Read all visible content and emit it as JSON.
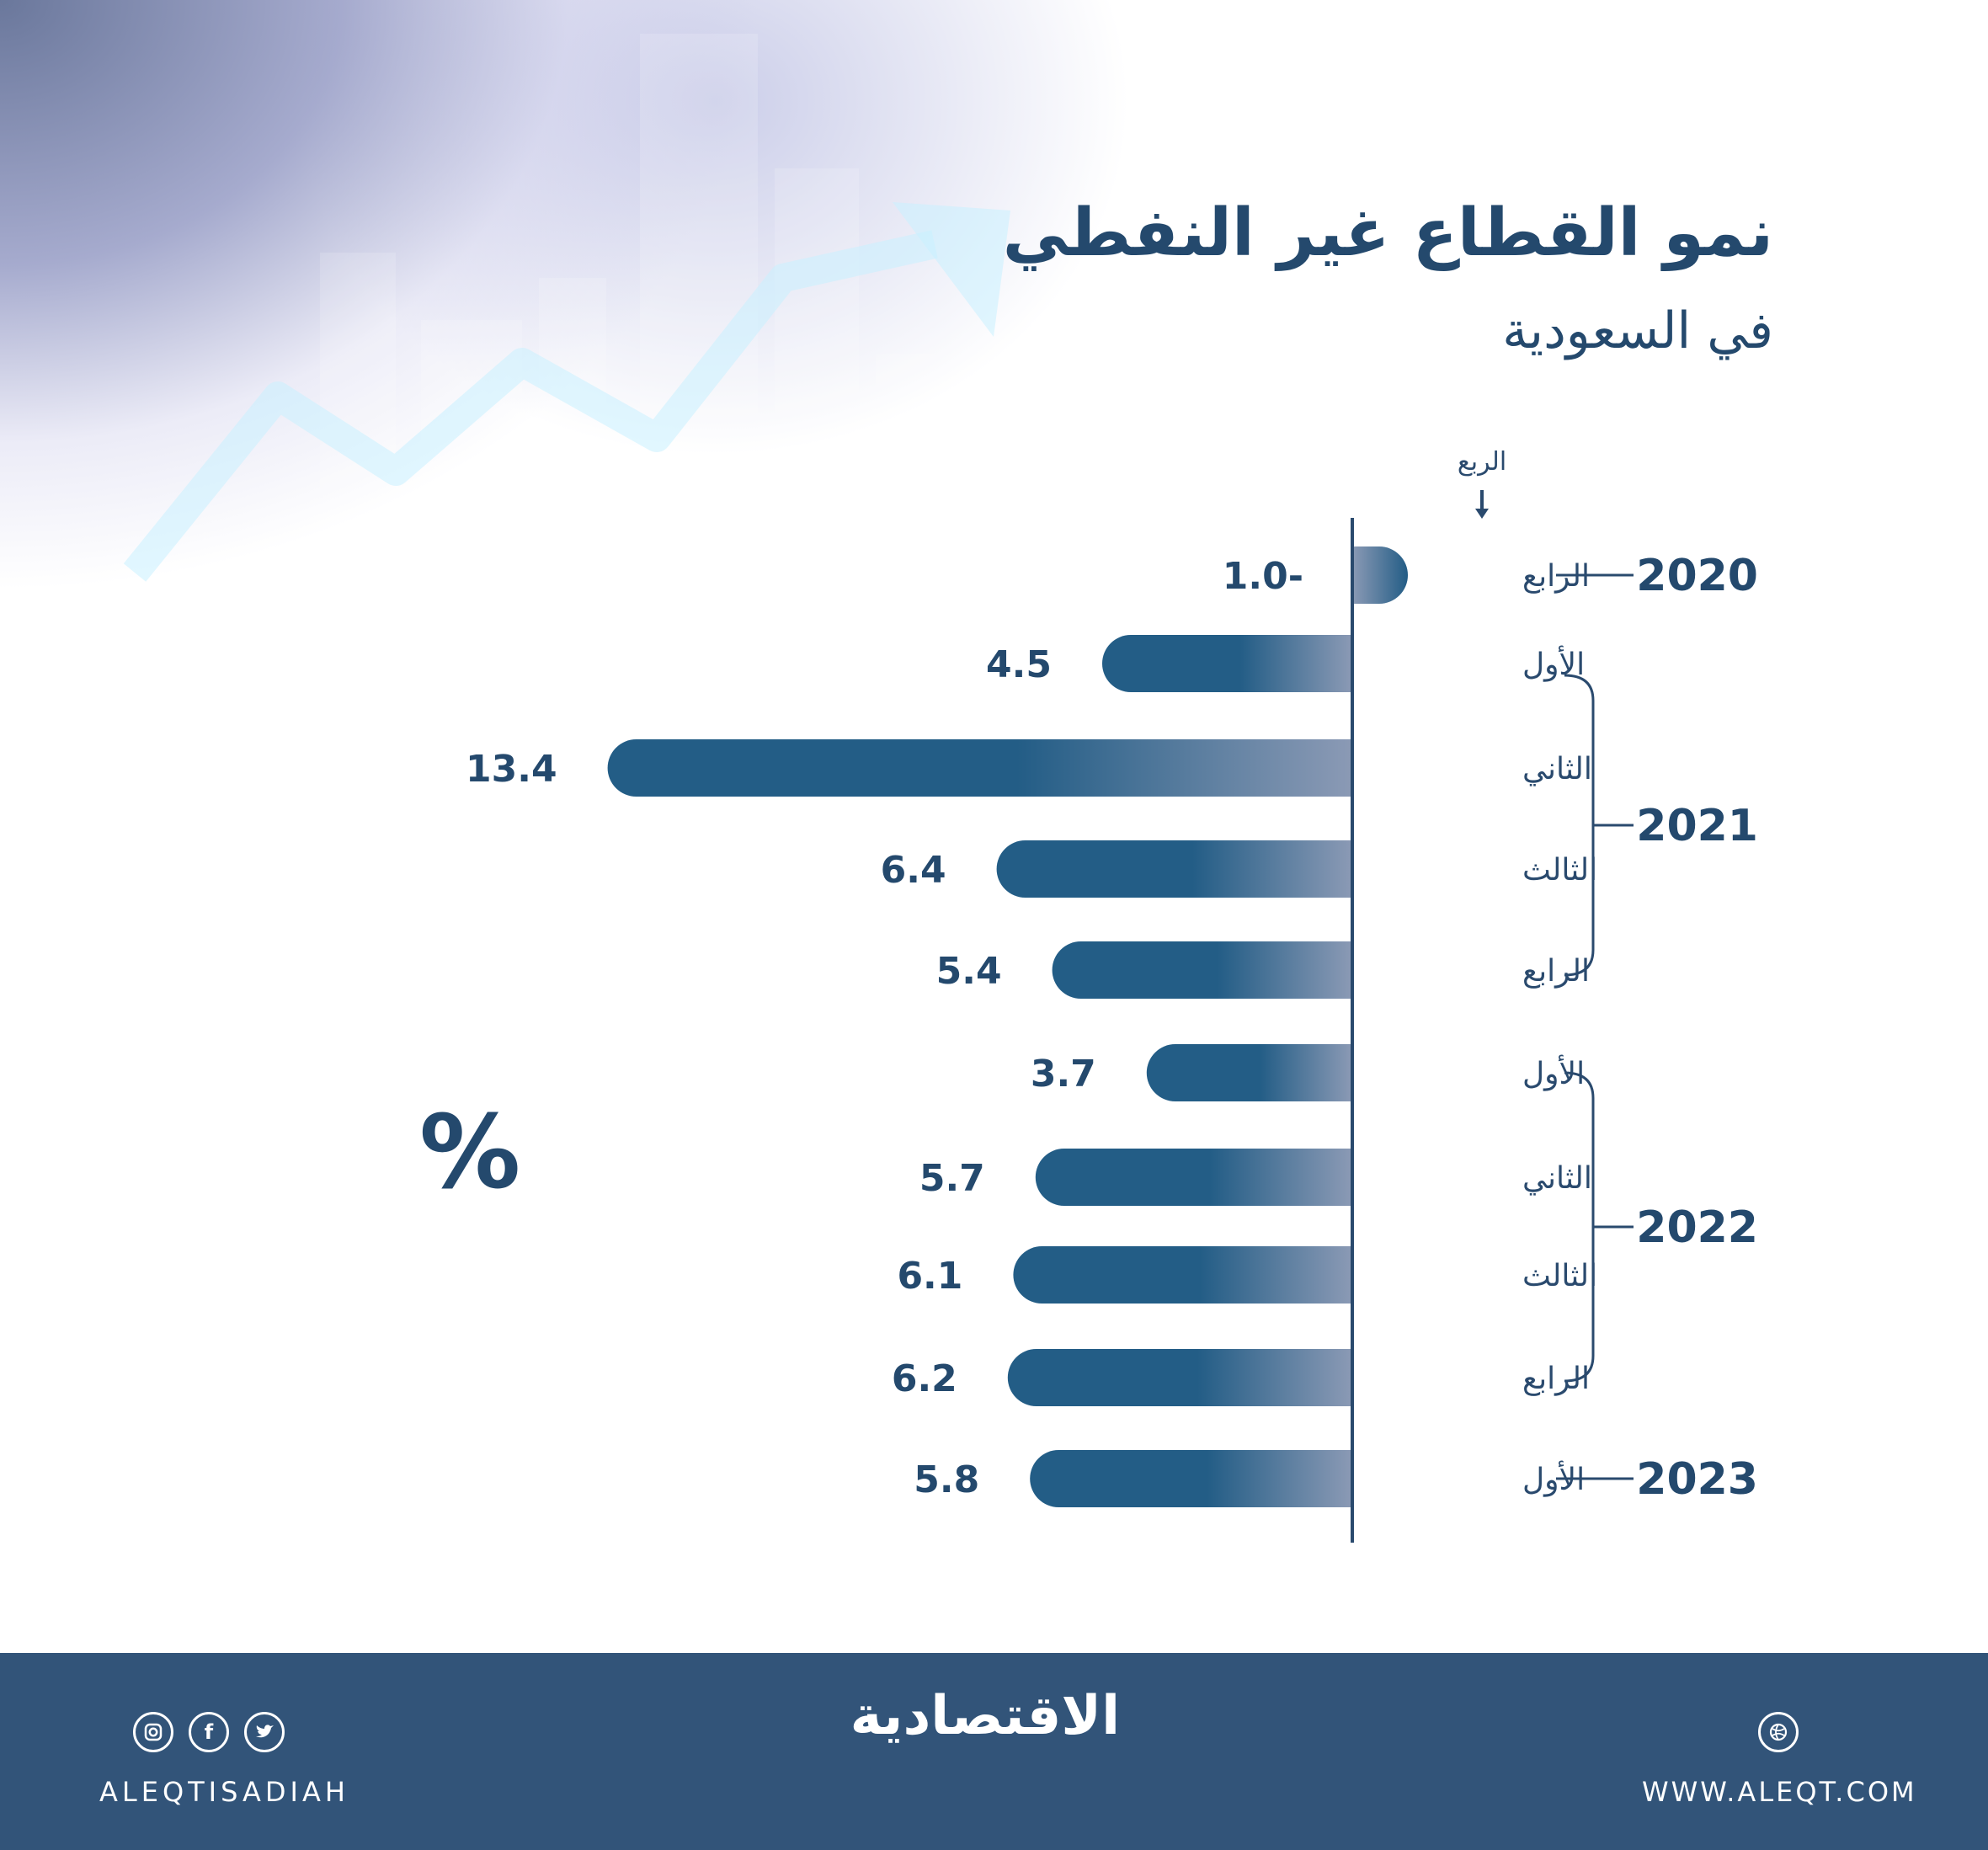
{
  "title": "نمو القطاع غير النفطي",
  "subtitle": "في السعودية",
  "unit_symbol": "%",
  "axis_header": "الربع",
  "chart_data": {
    "type": "bar",
    "orientation": "horizontal",
    "title": "نمو القطاع غير النفطي في السعودية",
    "unit": "%",
    "categories": [
      {
        "year": "2020",
        "quarter": "الرابع"
      },
      {
        "year": "2021",
        "quarter": "الأول"
      },
      {
        "year": "2021",
        "quarter": "الثاني"
      },
      {
        "year": "2021",
        "quarter": "الثالث"
      },
      {
        "year": "2021",
        "quarter": "الرابع"
      },
      {
        "year": "2022",
        "quarter": "الأول"
      },
      {
        "year": "2022",
        "quarter": "الثاني"
      },
      {
        "year": "2022",
        "quarter": "الثالث"
      },
      {
        "year": "2022",
        "quarter": "الرابع"
      },
      {
        "year": "2023",
        "quarter": "الأول"
      }
    ],
    "values": [
      -1.0,
      4.5,
      13.4,
      6.4,
      5.4,
      3.7,
      5.7,
      6.1,
      6.2,
      5.8
    ],
    "value_labels": [
      "1.0-",
      "4.5",
      "13.4",
      "6.4",
      "5.4",
      "3.7",
      "5.7",
      "6.1",
      "6.2",
      "5.8"
    ],
    "years": [
      "2020",
      "2021",
      "2022",
      "2023"
    ],
    "bar_color": "#235d86",
    "bar_fade_color": "#8b9ab5"
  },
  "footer": {
    "brand": "الاقتصادية",
    "handle": "ALEQTISADIAH",
    "website": "WWW.ALEQT.COM",
    "social_icons": [
      "instagram-icon",
      "facebook-icon",
      "twitter-icon"
    ],
    "web_icon": "globe-icon",
    "background": "#325479"
  }
}
